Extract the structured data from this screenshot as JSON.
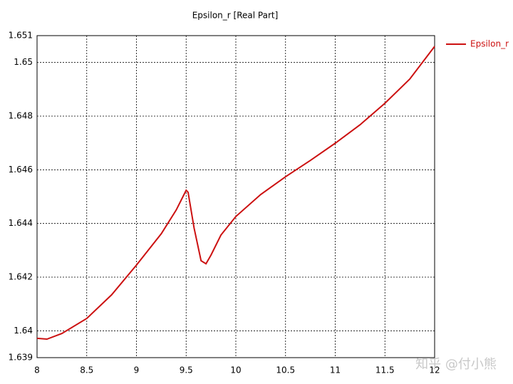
{
  "chart_data": {
    "type": "line",
    "title": "Epsilon_r [Real Part]",
    "x": [
      8,
      8.1,
      8.25,
      8.5,
      8.75,
      9,
      9.25,
      9.4,
      9.5,
      9.52,
      9.58,
      9.65,
      9.7,
      9.75,
      9.85,
      10,
      10.25,
      10.5,
      10.75,
      11,
      11.25,
      11.5,
      11.75,
      12
    ],
    "series": [
      {
        "name": "Epsilon_r",
        "color": "#cc1111",
        "values": [
          1.63972,
          1.63969,
          1.6399,
          1.64046,
          1.64134,
          1.64245,
          1.64362,
          1.6445,
          1.64524,
          1.64516,
          1.64383,
          1.64261,
          1.6425,
          1.64282,
          1.64357,
          1.64426,
          1.64508,
          1.64574,
          1.64635,
          1.64699,
          1.64768,
          1.64848,
          1.64938,
          1.6506
        ]
      }
    ],
    "xlim": [
      8,
      12
    ],
    "xticks": [
      8,
      8.5,
      9,
      9.5,
      10,
      10.5,
      11,
      11.5,
      12
    ],
    "ylim": [
      1.639,
      1.651
    ],
    "yticks": [
      1.639,
      1.64,
      1.642,
      1.644,
      1.646,
      1.648,
      1.65,
      1.651
    ],
    "grid": true,
    "legend": "top-right",
    "watermark": "知乎 @付小熊"
  }
}
